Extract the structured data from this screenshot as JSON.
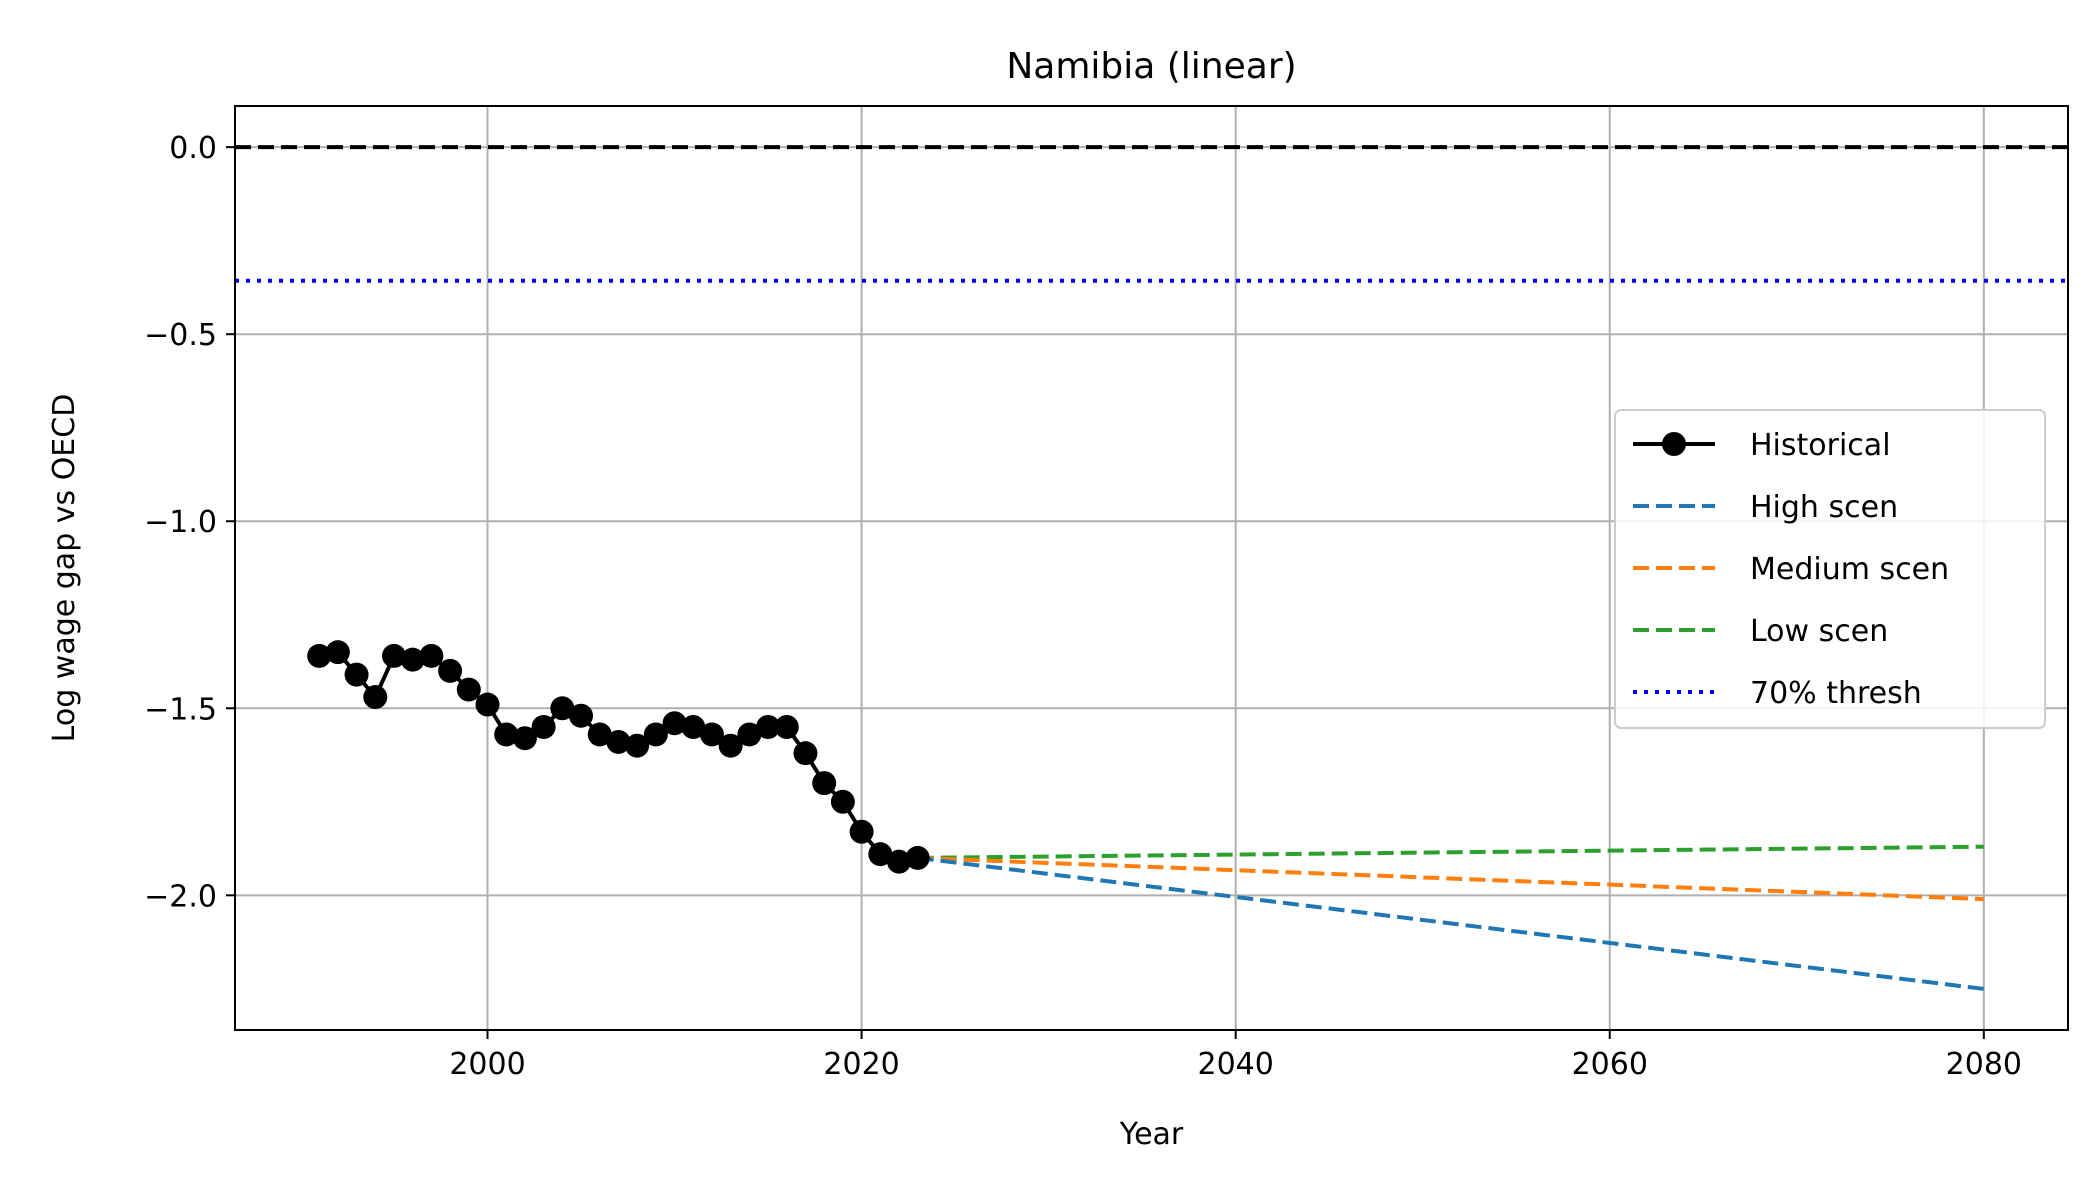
{
  "chart_data": {
    "type": "line",
    "title": "Namibia (linear)",
    "xlabel": "Year",
    "ylabel": "Log wage gap vs OECD",
    "xlim": [
      1986.5,
      2084.5
    ],
    "ylim": [
      -2.36,
      0.11
    ],
    "xticks": [
      2000,
      2020,
      2040,
      2060,
      2080
    ],
    "yticks": [
      0.0,
      -0.5,
      -1.0,
      -1.5,
      -2.0
    ],
    "xtick_labels": [
      "2000",
      "2020",
      "2040",
      "2060",
      "2080"
    ],
    "ytick_labels": [
      "0.0",
      "−0.5",
      "−1.0",
      "−1.5",
      "−2.0"
    ],
    "grid": true,
    "legend_position": "center-right",
    "reference_lines": [
      {
        "name": "zero",
        "y": 0.0,
        "color": "#000000",
        "style": "dashed"
      },
      {
        "name": "70% thresh",
        "y": -0.357,
        "color": "#0000ff",
        "style": "dotted"
      }
    ],
    "series": [
      {
        "name": "Historical",
        "color": "#000000",
        "style": "solid-marker",
        "x": [
          1991,
          1992,
          1993,
          1994,
          1995,
          1996,
          1997,
          1998,
          1999,
          2000,
          2001,
          2002,
          2003,
          2004,
          2005,
          2006,
          2007,
          2008,
          2009,
          2010,
          2011,
          2012,
          2013,
          2014,
          2015,
          2016,
          2017,
          2018,
          2019,
          2020,
          2021,
          2022,
          2023
        ],
        "y": [
          -1.36,
          -1.35,
          -1.41,
          -1.47,
          -1.36,
          -1.37,
          -1.36,
          -1.4,
          -1.45,
          -1.49,
          -1.57,
          -1.58,
          -1.55,
          -1.5,
          -1.52,
          -1.57,
          -1.59,
          -1.6,
          -1.57,
          -1.54,
          -1.55,
          -1.57,
          -1.6,
          -1.57,
          -1.55,
          -1.55,
          -1.62,
          -1.7,
          -1.75,
          -1.83,
          -1.89,
          -1.91,
          -1.9
        ]
      },
      {
        "name": "High scen",
        "color": "#1f77b4",
        "style": "dashed",
        "x": [
          2023,
          2080
        ],
        "y": [
          -1.9,
          -2.25
        ]
      },
      {
        "name": "Medium scen",
        "color": "#ff7f0e",
        "style": "dashed",
        "x": [
          2023,
          2080
        ],
        "y": [
          -1.9,
          -2.01
        ]
      },
      {
        "name": "Low scen",
        "color": "#2ca02c",
        "style": "dashed",
        "x": [
          2023,
          2080
        ],
        "y": [
          -1.9,
          -1.87
        ]
      }
    ],
    "legend": [
      "Historical",
      "High scen",
      "Medium scen",
      "Low scen",
      "70% thresh"
    ]
  }
}
